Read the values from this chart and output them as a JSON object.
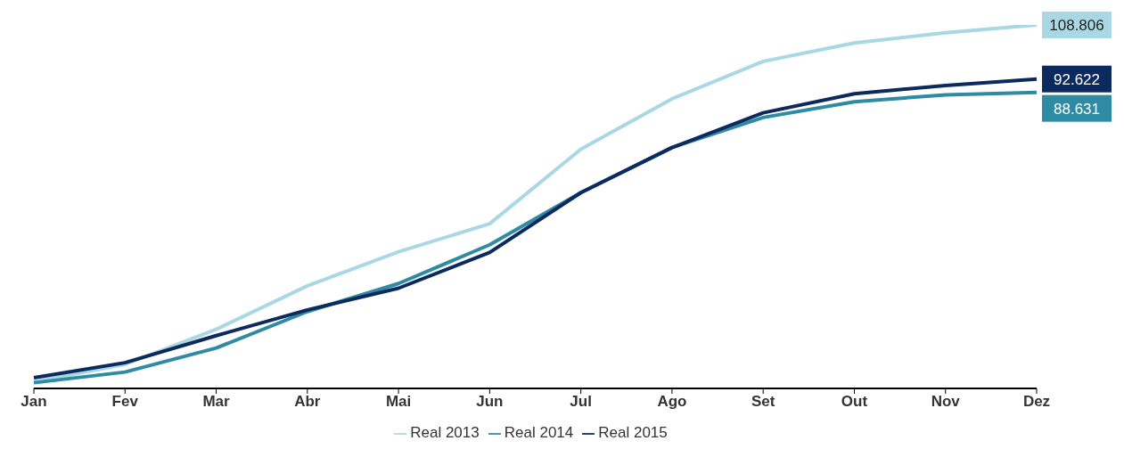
{
  "chart_data": {
    "type": "line",
    "categories": [
      "Jan",
      "Fev",
      "Mar",
      "Abr",
      "Mai",
      "Jun",
      "Jul",
      "Ago",
      "Set",
      "Out",
      "Nov",
      "Dez"
    ],
    "series": [
      {
        "name": "Real 2013",
        "color": "#a9d8e4",
        "values": [
          2,
          7.2,
          17.7,
          30.7,
          40.9,
          49.3,
          71.6,
          86.7,
          97.9,
          103.4,
          106.5,
          108.806
        ],
        "value_labels": [
          null,
          null,
          null,
          null,
          null,
          null,
          null,
          null,
          null,
          null,
          null,
          "108.806"
        ]
      },
      {
        "name": "Real 2014",
        "color": "#2e8ba3",
        "values": [
          1.7,
          4.9,
          12.1,
          23,
          31.4,
          43,
          58.6,
          72.1,
          81.1,
          85.8,
          87.9,
          88.631
        ],
        "value_labels": [
          null,
          null,
          null,
          null,
          null,
          null,
          null,
          null,
          null,
          null,
          null,
          "88.631"
        ]
      },
      {
        "name": "Real 2015",
        "color": "#0d2a5e",
        "values": [
          3.2,
          7.7,
          15.8,
          23.5,
          30,
          40.7,
          58.6,
          72.1,
          82.5,
          88.2,
          90.7,
          92.622
        ],
        "value_labels": [
          null,
          null,
          null,
          null,
          null,
          null,
          null,
          null,
          null,
          null,
          null,
          "92.622"
        ]
      }
    ],
    "legend": "bottom",
    "marker": "none",
    "line_style": "solid",
    "grid": false
  }
}
